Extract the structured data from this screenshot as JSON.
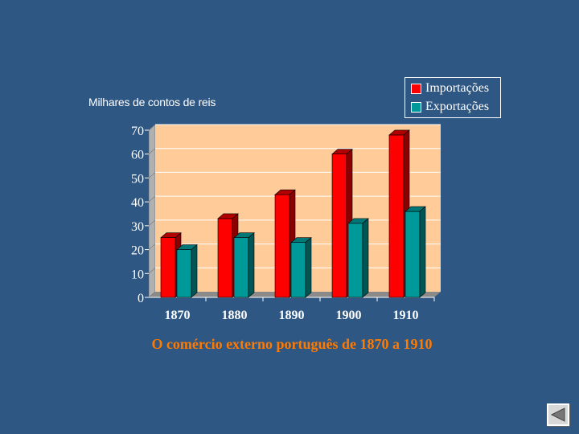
{
  "chart_data": {
    "type": "bar",
    "title": "O comércio externo português de 1870 a 1910",
    "ylabel": "Milhares de contos de reis",
    "xlabel": "",
    "categories": [
      "1870",
      "1880",
      "1890",
      "1900",
      "1910"
    ],
    "series": [
      {
        "name": "Importações",
        "color": "#ff0000",
        "values": [
          25,
          33,
          43,
          60,
          68
        ]
      },
      {
        "name": "Exportações",
        "color": "#009999",
        "values": [
          20,
          25,
          23,
          31,
          36
        ]
      }
    ],
    "ylim": [
      0,
      70
    ],
    "yticks": [
      0,
      10,
      20,
      30,
      40,
      50,
      60,
      70
    ],
    "grid": true,
    "legend_position": "top-right",
    "plot_background": "#ffcc99"
  },
  "nav": {
    "icon": "back-arrow-icon"
  }
}
